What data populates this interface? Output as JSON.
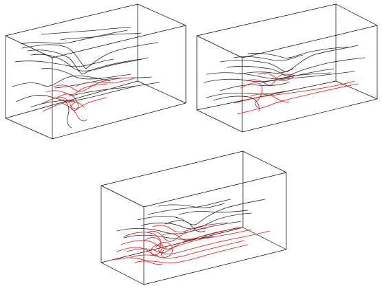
{
  "figure": {
    "panels": [
      {
        "id": "top-left"
      },
      {
        "id": "top-right"
      },
      {
        "id": "bottom-center"
      }
    ]
  },
  "colors": {
    "background": "#ffffff",
    "box_edges": "#000000",
    "streamline_dark": "#222222",
    "streamline_red": "#e01010"
  }
}
